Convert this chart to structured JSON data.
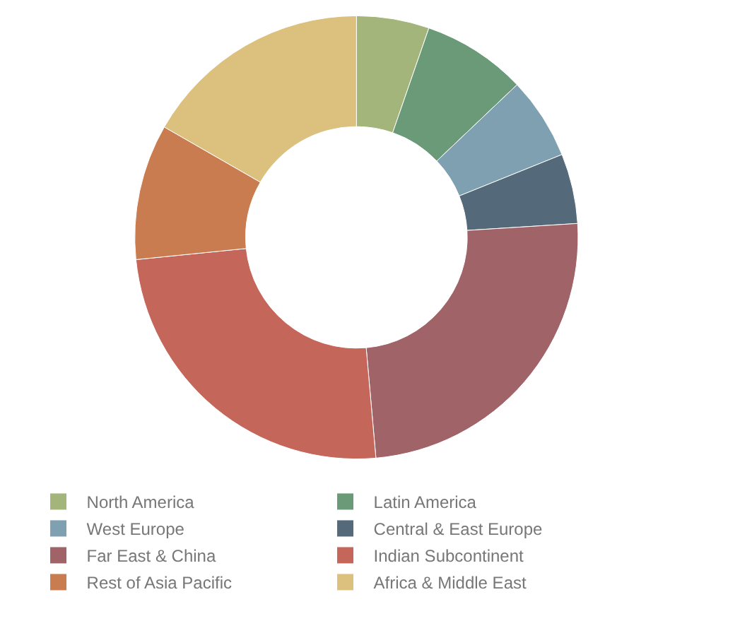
{
  "chart_data": {
    "type": "donut",
    "categories": [
      "North America",
      "Latin America",
      "West Europe",
      "Central & East Europe",
      "Far East & China",
      "Indian Subcontinent",
      "Rest of Asia Pacific",
      "Africa & Middle East"
    ],
    "values": [
      5.3,
      7.6,
      6.0,
      5.1,
      24.6,
      24.8,
      9.9,
      16.7
    ],
    "colors": [
      "#a3b57a",
      "#6a9a78",
      "#7fa0b0",
      "#546a7a",
      "#a06368",
      "#c4665a",
      "#c97c4f",
      "#dcc07e"
    ],
    "legend": "bottom"
  }
}
